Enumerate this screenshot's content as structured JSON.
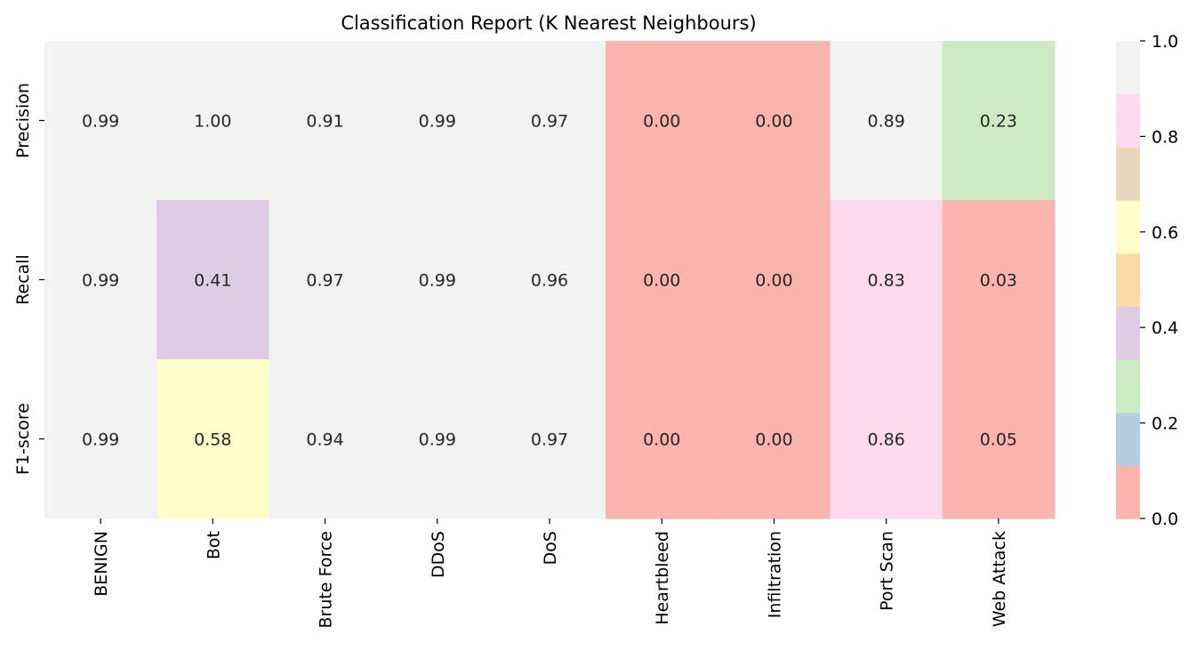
{
  "chart_data": {
    "type": "heatmap",
    "title": "Classification Report (K Nearest Neighbours)",
    "xlabel": "",
    "ylabel": "",
    "columns": [
      "BENIGN",
      "Bot",
      "Brute Force",
      "DDoS",
      "DoS",
      "Heartbleed",
      "Infiltration",
      "Port Scan",
      "Web Attack"
    ],
    "rows": [
      "Precision",
      "Recall",
      "F1-score"
    ],
    "values": [
      [
        0.99,
        1.0,
        0.91,
        0.99,
        0.97,
        0.0,
        0.0,
        0.89,
        0.23
      ],
      [
        0.99,
        0.41,
        0.97,
        0.99,
        0.96,
        0.0,
        0.0,
        0.83,
        0.03
      ],
      [
        0.99,
        0.58,
        0.94,
        0.99,
        0.97,
        0.0,
        0.0,
        0.86,
        0.05
      ]
    ],
    "value_format": "2 decimals",
    "colormap": "Pastel1",
    "colormap_colors": [
      "#fbb4ae",
      "#b3cde3",
      "#ccebc5",
      "#decbe4",
      "#fed9a6",
      "#ffffcc",
      "#e5d8bd",
      "#fddaec",
      "#f2f2f2"
    ],
    "vmin": 0.0,
    "vmax": 1.0,
    "colorbar_ticks": [
      "0.0",
      "0.2",
      "0.4",
      "0.6",
      "0.8",
      "1.0"
    ],
    "grid": false
  }
}
